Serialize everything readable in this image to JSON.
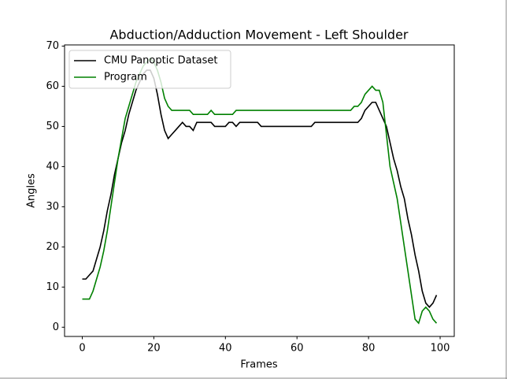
{
  "chart_data": {
    "type": "line",
    "title": "Abduction/Adduction Movement - Left Shoulder",
    "x_label": "Frames",
    "y_label": "Angles",
    "x": [
      0,
      1,
      2,
      3,
      4,
      5,
      6,
      7,
      8,
      9,
      10,
      11,
      12,
      13,
      14,
      15,
      16,
      17,
      18,
      19,
      20,
      21,
      22,
      23,
      24,
      25,
      26,
      27,
      28,
      29,
      30,
      31,
      32,
      33,
      34,
      35,
      36,
      37,
      38,
      39,
      40,
      41,
      42,
      43,
      44,
      45,
      46,
      47,
      48,
      49,
      50,
      51,
      52,
      53,
      54,
      55,
      56,
      57,
      58,
      59,
      60,
      61,
      62,
      63,
      64,
      65,
      66,
      67,
      68,
      69,
      70,
      71,
      72,
      73,
      74,
      75,
      76,
      77,
      78,
      79,
      80,
      81,
      82,
      83,
      84,
      85,
      86,
      87,
      88,
      89,
      90,
      91,
      92,
      93,
      94,
      95,
      96,
      97,
      98,
      99
    ],
    "series": [
      {
        "name": "CMU Panoptic Dataset",
        "color": "#000000",
        "values": [
          12,
          12,
          13,
          14,
          17,
          20,
          24,
          29,
          33,
          38,
          42,
          46,
          49,
          53,
          56,
          59,
          61,
          63,
          64,
          64,
          62,
          58,
          53,
          49,
          47,
          48,
          49,
          50,
          51,
          50,
          50,
          49,
          51,
          51,
          51,
          51,
          51,
          50,
          50,
          50,
          50,
          51,
          51,
          50,
          51,
          51,
          51,
          51,
          51,
          51,
          50,
          50,
          50,
          50,
          50,
          50,
          50,
          50,
          50,
          50,
          50,
          50,
          50,
          50,
          50,
          51,
          51,
          51,
          51,
          51,
          51,
          51,
          51,
          51,
          51,
          51,
          51,
          51,
          52,
          54,
          55,
          56,
          56,
          54,
          52,
          50,
          46,
          42,
          39,
          35,
          32,
          27,
          23,
          18,
          14,
          9,
          6,
          5,
          6,
          8
        ]
      },
      {
        "name": "Program",
        "color": "#008000",
        "values": [
          7,
          7,
          7,
          9,
          12,
          15,
          19,
          24,
          30,
          36,
          42,
          47,
          52,
          55,
          58,
          61,
          63,
          65,
          66,
          67,
          66,
          64,
          61,
          57,
          55,
          54,
          54,
          54,
          54,
          54,
          54,
          53,
          53,
          53,
          53,
          53,
          54,
          53,
          53,
          53,
          53,
          53,
          53,
          54,
          54,
          54,
          54,
          54,
          54,
          54,
          54,
          54,
          54,
          54,
          54,
          54,
          54,
          54,
          54,
          54,
          54,
          54,
          54,
          54,
          54,
          54,
          54,
          54,
          54,
          54,
          54,
          54,
          54,
          54,
          54,
          54,
          55,
          55,
          56,
          58,
          59,
          60,
          59,
          59,
          56,
          48,
          40,
          36,
          32,
          26,
          20,
          14,
          8,
          2,
          1,
          4,
          5,
          4,
          2,
          1
        ]
      }
    ],
    "xlim": [
      -4.95,
      103.95
    ],
    "xticks": [
      0,
      20,
      40,
      60,
      80,
      100
    ],
    "ylim": [
      -2.3,
      70.3
    ],
    "yticks": [
      0,
      10,
      20,
      30,
      40,
      50,
      60,
      70
    ],
    "legend": "upper left",
    "grid": false
  }
}
